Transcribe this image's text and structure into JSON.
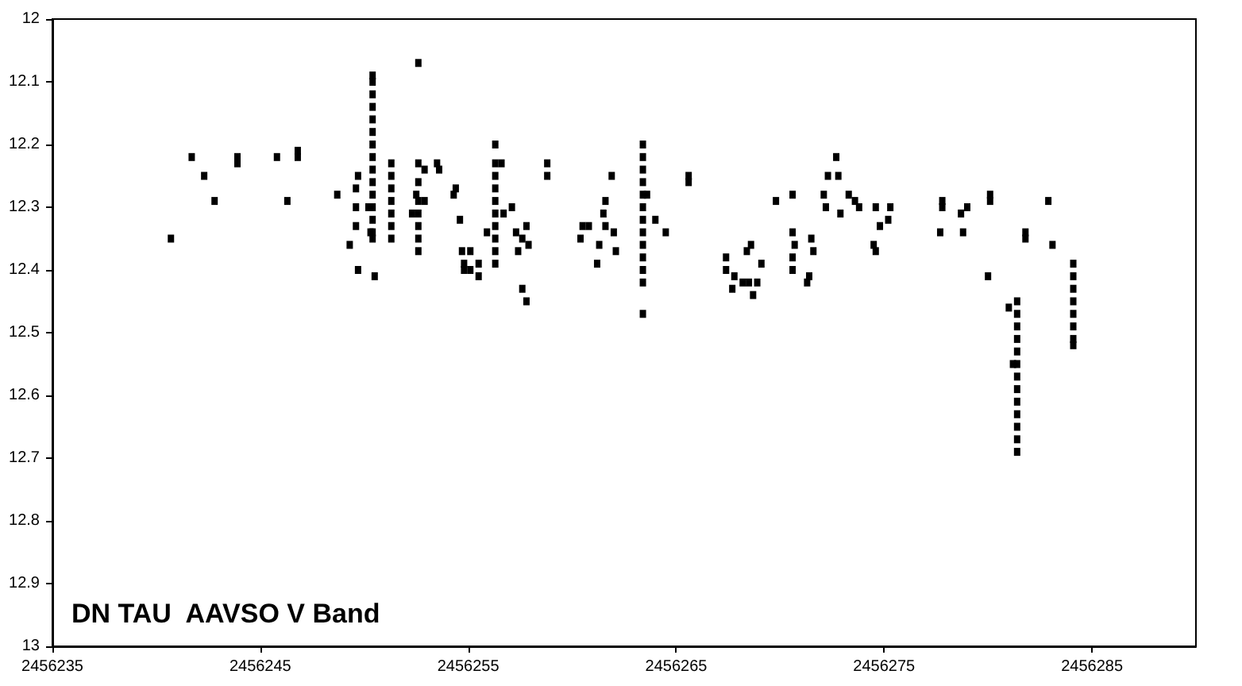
{
  "chart_data": {
    "type": "scatter",
    "title": "DN TAU  AAVSO V Band",
    "marker": "square",
    "grid": false,
    "xlim": [
      2456235,
      2456290
    ],
    "xticks": [
      2456235,
      2456245,
      2456255,
      2456265,
      2456275,
      2456285
    ],
    "ylim": [
      13,
      12
    ],
    "yticks": [
      12,
      12.1,
      12.2,
      12.3,
      12.4,
      12.5,
      12.6,
      12.7,
      12.8,
      12.9,
      13
    ],
    "series": [
      {
        "color": "#000000",
        "x": [
          2456240.7,
          2456241.7,
          2456242.3,
          2456242.8,
          2456243.9,
          2456243.9,
          2456245.8,
          2456246.3,
          2456246.8,
          2456246.8,
          2456248.7,
          2456249.3,
          2456249.6,
          2456249.6,
          2456249.7,
          2456249.6,
          2456249.7,
          2456250.2,
          2456250.3,
          2456250.4,
          2456250.4,
          2456250.4,
          2456250.4,
          2456250.4,
          2456250.4,
          2456250.4,
          2456250.4,
          2456250.4,
          2456250.4,
          2456250.4,
          2456250.4,
          2456250.4,
          2456250.4,
          2456250.4,
          2456250.5,
          2456251.3,
          2456251.3,
          2456251.3,
          2456251.3,
          2456251.3,
          2456251.3,
          2456251.3,
          2456252.6,
          2456252.6,
          2456252.6,
          2456252.6,
          2456252.6,
          2456252.6,
          2456252.6,
          2456252.6,
          2456252.3,
          2456252.9,
          2456252.9,
          2456252.5,
          2456253.5,
          2456253.6,
          2456254.4,
          2456254.3,
          2456254.6,
          2456254.7,
          2456254.8,
          2456254.8,
          2456255.1,
          2456255.1,
          2456255.5,
          2456255.5,
          2456255.9,
          2456256.3,
          2456256.3,
          2456256.3,
          2456256.3,
          2456256.3,
          2456256.3,
          2456256.3,
          2456256.3,
          2456256.3,
          2456256.3,
          2456256.6,
          2456256.7,
          2456257.1,
          2456257.3,
          2456257.4,
          2456257.6,
          2456257.8,
          2456257.9,
          2456257.6,
          2456257.8,
          2456258.8,
          2456258.8,
          2456260.5,
          2456260.4,
          2456260.8,
          2456261.3,
          2456261.2,
          2456261.5,
          2456261.6,
          2456261.9,
          2456261.6,
          2456262.0,
          2456262.1,
          2456263.4,
          2456263.4,
          2456263.4,
          2456263.4,
          2456263.4,
          2456263.4,
          2456263.4,
          2456263.4,
          2456263.4,
          2456263.4,
          2456263.4,
          2456263.4,
          2456263.4,
          2456263.6,
          2456264.0,
          2456264.5,
          2456265.6,
          2456265.6,
          2456267.4,
          2456267.4,
          2456267.7,
          2456267.8,
          2456268.2,
          2456268.5,
          2456268.7,
          2456268.9,
          2456268.6,
          2456268.4,
          2456269.1,
          2456269.8,
          2456270.6,
          2456270.6,
          2456270.7,
          2456270.6,
          2456270.6,
          2456271.5,
          2456271.6,
          2456271.4,
          2456271.3,
          2456272.1,
          2456272.2,
          2456272.3,
          2456272.7,
          2456272.8,
          2456272.9,
          2456273.3,
          2456273.6,
          2456273.8,
          2456274.6,
          2456274.5,
          2456274.6,
          2456274.8,
          2456275.2,
          2456275.3,
          2456277.8,
          2456277.8,
          2456277.7,
          2456278.7,
          2456278.8,
          2456279.0,
          2456280.1,
          2456280.1,
          2456280.0,
          2456281.0,
          2456281.2,
          2456281.4,
          2456281.4,
          2456281.4,
          2456281.4,
          2456281.4,
          2456281.4,
          2456281.4,
          2456281.4,
          2456281.4,
          2456281.4,
          2456281.4,
          2456281.4,
          2456281.4,
          2456281.8,
          2456281.8,
          2456282.9,
          2456283.1,
          2456284.1,
          2456284.1,
          2456284.1,
          2456284.1,
          2456284.1,
          2456284.1,
          2456284.1,
          2456284.1
        ],
        "values": [
          12.35,
          12.22,
          12.25,
          12.29,
          12.22,
          12.23,
          12.22,
          12.29,
          12.21,
          12.22,
          12.28,
          12.36,
          12.3,
          12.33,
          12.25,
          12.27,
          12.4,
          12.3,
          12.34,
          12.09,
          12.1,
          12.12,
          12.14,
          12.16,
          12.18,
          12.2,
          12.22,
          12.24,
          12.26,
          12.28,
          12.3,
          12.32,
          12.34,
          12.35,
          12.41,
          12.23,
          12.25,
          12.27,
          12.29,
          12.31,
          12.33,
          12.35,
          12.07,
          12.23,
          12.26,
          12.29,
          12.31,
          12.33,
          12.35,
          12.37,
          12.31,
          12.24,
          12.29,
          12.28,
          12.23,
          12.24,
          12.27,
          12.28,
          12.32,
          12.37,
          12.39,
          12.4,
          12.37,
          12.4,
          12.39,
          12.41,
          12.34,
          12.2,
          12.23,
          12.25,
          12.27,
          12.29,
          12.31,
          12.33,
          12.35,
          12.37,
          12.39,
          12.23,
          12.31,
          12.3,
          12.34,
          12.37,
          12.35,
          12.33,
          12.36,
          12.43,
          12.45,
          12.23,
          12.25,
          12.33,
          12.35,
          12.33,
          12.36,
          12.39,
          12.31,
          12.29,
          12.25,
          12.33,
          12.34,
          12.37,
          12.2,
          12.22,
          12.24,
          12.26,
          12.28,
          12.3,
          12.32,
          12.34,
          12.36,
          12.38,
          12.4,
          12.42,
          12.47,
          12.28,
          12.32,
          12.34,
          12.25,
          12.26,
          12.38,
          12.4,
          12.43,
          12.41,
          12.42,
          12.42,
          12.44,
          12.42,
          12.36,
          12.37,
          12.39,
          12.29,
          12.28,
          12.34,
          12.36,
          12.38,
          12.4,
          12.35,
          12.37,
          12.41,
          12.42,
          12.28,
          12.3,
          12.25,
          12.22,
          12.25,
          12.31,
          12.28,
          12.29,
          12.3,
          12.3,
          12.36,
          12.37,
          12.33,
          12.32,
          12.3,
          12.29,
          12.3,
          12.34,
          12.31,
          12.34,
          12.3,
          12.28,
          12.29,
          12.41,
          12.46,
          12.55,
          12.45,
          12.47,
          12.49,
          12.51,
          12.53,
          12.55,
          12.57,
          12.59,
          12.61,
          12.63,
          12.65,
          12.67,
          12.69,
          12.35,
          12.34,
          12.29,
          12.36,
          12.39,
          12.41,
          12.43,
          12.45,
          12.47,
          12.49,
          12.51,
          12.52
        ]
      }
    ]
  }
}
